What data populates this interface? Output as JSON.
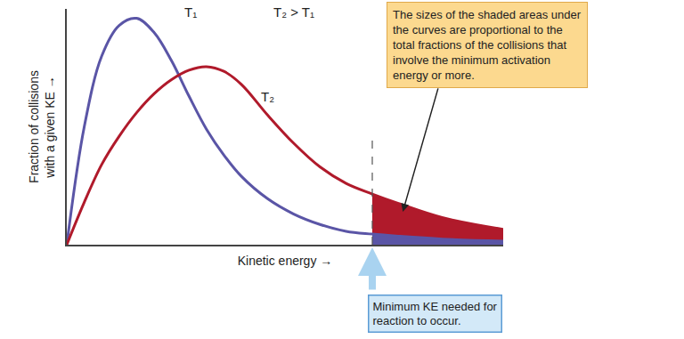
{
  "chart_data": {
    "type": "line",
    "x_label": "Kinetic energy →",
    "y_label": "Fraction of collisions\nwith a given KE →",
    "x": [
      0,
      4,
      8,
      12,
      16,
      20,
      24,
      28,
      32,
      36,
      40,
      46,
      52,
      58,
      64,
      70,
      76,
      86,
      100
    ],
    "series": [
      {
        "name": "T₁",
        "color": "#5a55a6",
        "values": [
          0,
          50,
          80,
          93,
          96,
          90,
          78,
          63,
          49,
          38,
          29,
          19.5,
          13,
          8.6,
          5.7,
          4.5,
          3.6,
          2.4,
          1.5
        ]
      },
      {
        "name": "T₂",
        "color": "#b01a2b",
        "values": [
          0,
          18,
          34,
          46,
          56,
          64,
          70,
          74,
          75.5,
          73.5,
          68,
          55,
          43,
          33,
          26,
          21.5,
          17.5,
          11.5,
          6.5
        ]
      }
    ],
    "activation_energy": 70,
    "note": "T₂ > T₁",
    "callout": [
      "The sizes of the shaded areas under",
      "the curves are proportional to the",
      "total fractions of the collisions that",
      "involve the minimum activation",
      "energy or more."
    ],
    "threshold_label": [
      "Minimum KE needed for",
      "reaction to occur."
    ],
    "xlim": [
      0,
      100
    ],
    "ylim": [
      0,
      100
    ],
    "xticks": [],
    "yticks": [],
    "tick_labels": false,
    "grid": false
  }
}
